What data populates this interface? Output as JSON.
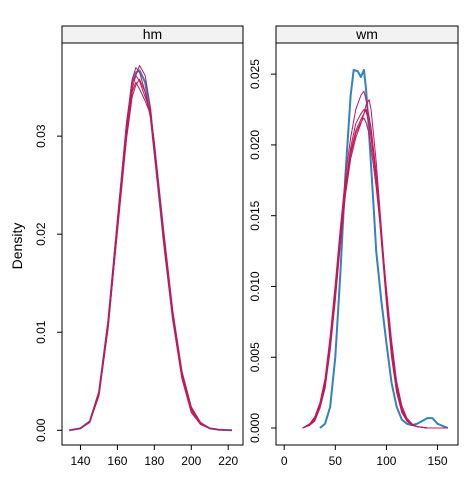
{
  "chart_data": {
    "type": "line",
    "ylabel": "Density",
    "colors": {
      "observed": "#3182bd",
      "imputed": "#c2185b"
    },
    "panels": [
      {
        "strip": "hm",
        "xlim": [
          130,
          228
        ],
        "ylim": [
          -0.0015,
          0.0395
        ],
        "xticks": [
          "140",
          "160",
          "180",
          "200",
          "220"
        ],
        "xtick_values": [
          140,
          160,
          180,
          200,
          220
        ],
        "yticks": [
          "0.00",
          "0.01",
          "0.02",
          "0.03"
        ],
        "ytick_values": [
          0,
          0.01,
          0.02,
          0.03
        ],
        "series": [
          {
            "kind": "observed",
            "x": [
              134,
              140,
              145,
              150,
              155,
              160,
              165,
              168,
              170,
              172,
              175,
              178,
              180,
              185,
              190,
              195,
              200,
              205,
              210,
              215,
              222
            ],
            "y": [
              0,
              0.0002,
              0.0009,
              0.0038,
              0.011,
              0.021,
              0.031,
              0.0355,
              0.0365,
              0.0367,
              0.0355,
              0.032,
              0.0285,
              0.0195,
              0.0115,
              0.0055,
              0.0022,
              0.0007,
              0.0002,
              5e-05,
              0
            ]
          },
          {
            "kind": "imputed",
            "x": [
              134,
              140,
              145,
              150,
              155,
              160,
              165,
              168,
              170,
              172,
              175,
              178,
              180,
              185,
              190,
              195,
              200,
              205,
              210,
              215,
              222
            ],
            "y": [
              0,
              0.0002,
              0.0008,
              0.0036,
              0.0108,
              0.0208,
              0.0312,
              0.0358,
              0.037,
              0.0365,
              0.0345,
              0.0322,
              0.0288,
              0.0198,
              0.0118,
              0.0058,
              0.002,
              0.0006,
              0.0002,
              5e-05,
              0
            ]
          },
          {
            "kind": "imputed",
            "x": [
              134,
              140,
              145,
              150,
              155,
              160,
              165,
              168,
              170,
              172,
              175,
              178,
              180,
              185,
              190,
              195,
              200,
              205,
              210,
              215,
              222
            ],
            "y": [
              0,
              0.0002,
              0.0009,
              0.004,
              0.0112,
              0.0212,
              0.0305,
              0.0348,
              0.0362,
              0.0372,
              0.0362,
              0.0328,
              0.029,
              0.0192,
              0.0112,
              0.0052,
              0.0018,
              0.0006,
              0.0002,
              5e-05,
              0
            ]
          },
          {
            "kind": "imputed",
            "x": [
              134,
              140,
              145,
              150,
              155,
              160,
              165,
              168,
              170,
              172,
              175,
              178,
              180,
              185,
              190,
              195,
              200,
              205,
              210,
              215,
              222
            ],
            "y": [
              0,
              0.0002,
              0.0008,
              0.0037,
              0.0106,
              0.0202,
              0.0298,
              0.034,
              0.0352,
              0.0358,
              0.0345,
              0.0318,
              0.0282,
              0.0198,
              0.0118,
              0.0058,
              0.0023,
              0.0008,
              0.0002,
              5e-05,
              0
            ]
          },
          {
            "kind": "imputed",
            "x": [
              134,
              140,
              145,
              150,
              155,
              160,
              165,
              168,
              170,
              172,
              175,
              178,
              180,
              185,
              190,
              195,
              200,
              205,
              210,
              215,
              222
            ],
            "y": [
              0,
              0.0002,
              0.0009,
              0.0039,
              0.0113,
              0.0215,
              0.0315,
              0.0355,
              0.0362,
              0.0356,
              0.034,
              0.0325,
              0.0292,
              0.0202,
              0.0118,
              0.0056,
              0.0021,
              0.0007,
              0.0002,
              5e-05,
              0
            ]
          },
          {
            "kind": "imputed",
            "x": [
              134,
              140,
              145,
              150,
              155,
              160,
              165,
              168,
              170,
              172,
              175,
              178,
              180,
              185,
              190,
              195,
              200,
              205,
              210,
              215,
              222
            ],
            "y": [
              0,
              0.0002,
              0.0008,
              0.0035,
              0.0104,
              0.0205,
              0.0302,
              0.0345,
              0.0355,
              0.0348,
              0.0336,
              0.0322,
              0.0294,
              0.0205,
              0.0122,
              0.006,
              0.0024,
              0.0008,
              0.0002,
              5e-05,
              0
            ]
          }
        ]
      },
      {
        "strip": "wm",
        "xlim": [
          -8,
          170
        ],
        "ylim": [
          -0.0012,
          0.0272
        ],
        "xticks": [
          "0",
          "50",
          "100",
          "150"
        ],
        "xtick_values": [
          0,
          50,
          100,
          150
        ],
        "yticks": [
          "0.000",
          "0.005",
          "0.010",
          "0.015",
          "0.020",
          "0.025"
        ],
        "ytick_values": [
          0,
          0.005,
          0.01,
          0.015,
          0.02,
          0.025
        ],
        "series": [
          {
            "kind": "observed",
            "x": [
              35,
              40,
              45,
              50,
              55,
              60,
              65,
              68,
              72,
              75,
              78,
              80,
              82,
              85,
              88,
              90,
              95,
              100,
              105,
              110,
              115,
              120,
              125,
              130,
              135,
              140,
              145,
              150,
              160
            ],
            "y": [
              0,
              0.0003,
              0.0015,
              0.005,
              0.011,
              0.018,
              0.0235,
              0.0253,
              0.0252,
              0.0248,
              0.0253,
              0.024,
              0.022,
              0.0185,
              0.015,
              0.0125,
              0.009,
              0.006,
              0.0032,
              0.0015,
              0.0006,
              0.0003,
              0.0002,
              0.0003,
              0.0005,
              0.0007,
              0.0007,
              0.0003,
              0
            ]
          },
          {
            "kind": "imputed",
            "x": [
              18,
              25,
              30,
              35,
              40,
              45,
              50,
              55,
              60,
              65,
              70,
              75,
              78,
              80,
              83,
              85,
              90,
              95,
              100,
              105,
              110,
              115,
              120,
              125,
              130,
              140,
              150,
              160
            ],
            "y": [
              0,
              0.0002,
              0.0006,
              0.0015,
              0.003,
              0.006,
              0.0095,
              0.0135,
              0.0168,
              0.0195,
              0.021,
              0.0218,
              0.0222,
              0.0225,
              0.022,
              0.0212,
              0.018,
              0.0135,
              0.009,
              0.0052,
              0.0026,
              0.0012,
              0.0005,
              0.0002,
              0.0001,
              0,
              0,
              0
            ]
          },
          {
            "kind": "imputed",
            "x": [
              18,
              25,
              30,
              35,
              40,
              45,
              50,
              55,
              60,
              65,
              70,
              75,
              78,
              80,
              83,
              85,
              90,
              95,
              100,
              105,
              110,
              115,
              120,
              125,
              130,
              140,
              150,
              160
            ],
            "y": [
              0,
              0.0003,
              0.0008,
              0.0018,
              0.0035,
              0.0065,
              0.0102,
              0.0142,
              0.0178,
              0.0205,
              0.0225,
              0.0235,
              0.0238,
              0.0232,
              0.022,
              0.021,
              0.0178,
              0.0132,
              0.0088,
              0.005,
              0.0025,
              0.0011,
              0.0005,
              0.0002,
              0.0001,
              0,
              0,
              0
            ]
          },
          {
            "kind": "imputed",
            "x": [
              18,
              25,
              30,
              35,
              40,
              45,
              50,
              55,
              60,
              65,
              70,
              75,
              78,
              80,
              83,
              85,
              90,
              95,
              100,
              105,
              110,
              115,
              120,
              125,
              130,
              140,
              150,
              160
            ],
            "y": [
              0,
              0.0002,
              0.0005,
              0.0014,
              0.0028,
              0.0055,
              0.009,
              0.013,
              0.0165,
              0.019,
              0.0205,
              0.0215,
              0.0222,
              0.0228,
              0.0232,
              0.0225,
              0.0188,
              0.0142,
              0.0095,
              0.0056,
              0.0028,
              0.0013,
              0.0006,
              0.0002,
              0.0001,
              0,
              0,
              0
            ]
          },
          {
            "kind": "imputed",
            "x": [
              18,
              25,
              30,
              35,
              40,
              45,
              50,
              55,
              60,
              65,
              70,
              75,
              78,
              80,
              83,
              85,
              90,
              95,
              100,
              105,
              110,
              115,
              120,
              125,
              130,
              140,
              150,
              160
            ],
            "y": [
              0,
              0.0003,
              0.0007,
              0.0017,
              0.0033,
              0.006,
              0.0098,
              0.0138,
              0.0172,
              0.0198,
              0.0215,
              0.0222,
              0.0225,
              0.0224,
              0.0215,
              0.0205,
              0.0175,
              0.0138,
              0.0098,
              0.006,
              0.003,
              0.0014,
              0.0006,
              0.0002,
              0.0001,
              0,
              0,
              0
            ]
          },
          {
            "kind": "imputed",
            "x": [
              18,
              25,
              30,
              35,
              40,
              45,
              50,
              55,
              60,
              65,
              70,
              75,
              78,
              80,
              83,
              85,
              90,
              95,
              100,
              105,
              110,
              115,
              120,
              125,
              130,
              140,
              150,
              160
            ],
            "y": [
              0,
              0.0002,
              0.0006,
              0.0016,
              0.0032,
              0.0058,
              0.0095,
              0.0133,
              0.0168,
              0.0193,
              0.0208,
              0.0216,
              0.0219,
              0.0216,
              0.0208,
              0.0198,
              0.017,
              0.0135,
              0.0098,
              0.0062,
              0.0033,
              0.0016,
              0.0007,
              0.0003,
              0.0001,
              0,
              0,
              0
            ]
          }
        ]
      }
    ]
  }
}
